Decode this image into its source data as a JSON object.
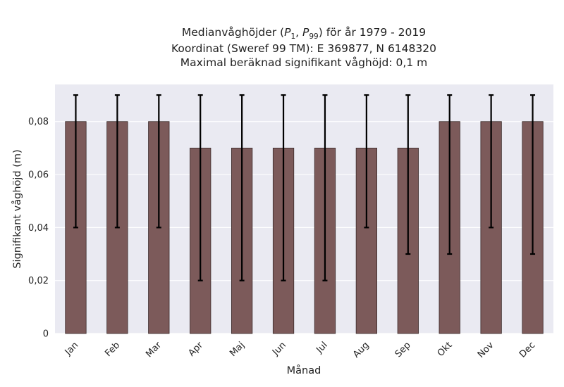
{
  "chart_data": {
    "type": "bar",
    "title_lines": [
      "Medianvåghöjder (P1, P99) för år 1979 - 2019",
      "Koordinat (Sweref 99 TM): E 369877, N 6148320",
      "Maximal beräknad signifikant våghöjd: 0,1 m"
    ],
    "title_math": {
      "prefix": "Medianvåghöjder (",
      "p_low": "P",
      "p_low_sub": "1",
      "sep": ", ",
      "p_high": "P",
      "p_high_sub": "99",
      "suffix": ") för år 1979 - 2019"
    },
    "xlabel": "Månad",
    "ylabel": "Signifikant våghöjd (m)",
    "categories": [
      "Jan",
      "Feb",
      "Mar",
      "Apr",
      "Maj",
      "Jun",
      "Jul",
      "Aug",
      "Sep",
      "Okt",
      "Nov",
      "Dec"
    ],
    "values": [
      0.08,
      0.08,
      0.08,
      0.07,
      0.07,
      0.07,
      0.07,
      0.07,
      0.07,
      0.08,
      0.08,
      0.08
    ],
    "error_low": [
      0.04,
      0.04,
      0.04,
      0.02,
      0.02,
      0.02,
      0.02,
      0.04,
      0.03,
      0.03,
      0.04,
      0.03
    ],
    "error_high": [
      0.09,
      0.09,
      0.09,
      0.09,
      0.09,
      0.09,
      0.09,
      0.09,
      0.09,
      0.09,
      0.09,
      0.09
    ],
    "ylim": [
      0,
      0.094
    ],
    "yticks": [
      0,
      0.02,
      0.04,
      0.06,
      0.08
    ],
    "ytick_labels": [
      "0",
      "0,02",
      "0,04",
      "0,06",
      "0,08"
    ],
    "grid": true,
    "colors": {
      "bar": "#7c5a5a",
      "bar_edge": "#3a2a2a",
      "error": "#000000",
      "background": "#eaeaf2",
      "grid": "#ffffff"
    }
  }
}
